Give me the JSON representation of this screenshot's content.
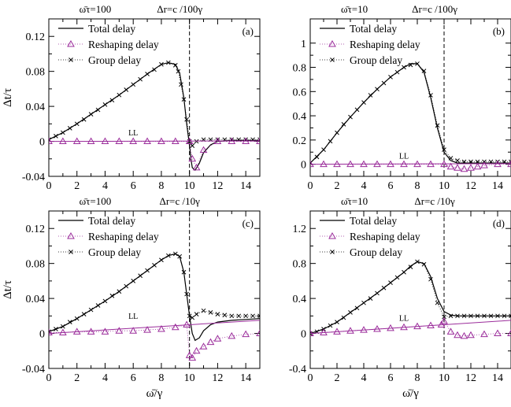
{
  "colors": {
    "total": "#000000",
    "reshaping": "#9b2d9b",
    "group": "#000000",
    "ll": "#9b2d9b",
    "axis": "#000000"
  },
  "chart_data": [
    {
      "id": "a",
      "type": "line",
      "panel_label": "(a)",
      "header_left": "ω̄τ=100",
      "header_right": "Δr=c /100γ",
      "ylabel": "Δt/τ",
      "xlabel": "",
      "xlim": [
        0,
        15
      ],
      "ylim": [
        -0.04,
        0.14
      ],
      "xticks": [
        0,
        2,
        4,
        6,
        8,
        10,
        12,
        14
      ],
      "xtick_labels": [
        "0",
        "2",
        "4",
        "6",
        "8",
        "10",
        "12",
        "14"
      ],
      "yticks": [
        -0.04,
        0,
        0.04,
        0.08,
        0.12
      ],
      "ytick_labels": [
        "-0.04",
        "0",
        "0.04",
        "0.08",
        "0.12"
      ],
      "vline": 10,
      "ll_label": "LL",
      "ll_at": [
        6,
        0.003
      ],
      "legend": [
        "Total delay",
        "Reshaping delay",
        "Group delay"
      ],
      "series": [
        {
          "name": "Total delay",
          "style": "solid",
          "x": [
            0,
            1,
            2,
            3,
            4,
            5,
            6,
            7,
            8,
            8.5,
            9,
            9.3,
            9.6,
            9.8,
            10,
            10.1,
            10.2,
            10.4,
            10.7,
            11,
            11.5,
            12,
            13,
            14,
            15
          ],
          "y": [
            0.002,
            0.01,
            0.02,
            0.031,
            0.042,
            0.053,
            0.065,
            0.077,
            0.088,
            0.09,
            0.088,
            0.078,
            0.05,
            0.02,
            -0.005,
            -0.02,
            -0.03,
            -0.033,
            -0.025,
            -0.013,
            -0.004,
            0,
            0.001,
            0.001,
            0.001
          ]
        },
        {
          "name": "Group delay",
          "style": "x",
          "x": [
            0,
            0.5,
            1,
            1.5,
            2,
            2.5,
            3,
            3.5,
            4,
            4.5,
            5,
            5.5,
            6,
            6.5,
            7,
            7.5,
            8,
            8.5,
            9,
            9.2,
            9.4,
            9.6,
            9.8,
            10,
            10.2,
            10.5,
            11,
            11.5,
            12,
            12.5,
            13,
            13.5,
            14,
            14.5,
            15
          ],
          "y": [
            0.002,
            0.006,
            0.01,
            0.015,
            0.02,
            0.025,
            0.031,
            0.036,
            0.042,
            0.047,
            0.053,
            0.059,
            0.065,
            0.071,
            0.077,
            0.082,
            0.088,
            0.09,
            0.087,
            0.08,
            0.065,
            0.048,
            0.025,
            0.0,
            -0.005,
            0.0,
            0.002,
            0.002,
            0.002,
            0.002,
            0.002,
            0.002,
            0.002,
            0.002,
            0.002
          ]
        },
        {
          "name": "Reshaping delay",
          "style": "triangle",
          "x": [
            0,
            1,
            2,
            3,
            4,
            5,
            6,
            7,
            8,
            9,
            10,
            10.2,
            10.5,
            11,
            12,
            13,
            14,
            15
          ],
          "y": [
            0,
            0,
            0,
            0,
            0,
            0,
            0,
            0,
            0,
            0,
            0,
            -0.02,
            -0.03,
            -0.01,
            0,
            0,
            0,
            0
          ]
        },
        {
          "name": "LL",
          "style": "ll",
          "x": [
            0,
            15
          ],
          "y": [
            0.0,
            0.0005
          ]
        }
      ]
    },
    {
      "id": "b",
      "type": "line",
      "panel_label": "(b)",
      "header_left": "ω̄τ=10",
      "header_right": "Δr=c /100γ",
      "ylabel": "",
      "xlabel": "",
      "xlim": [
        0,
        15
      ],
      "ylim": [
        -0.1,
        1.2
      ],
      "xticks": [
        0,
        2,
        4,
        6,
        8,
        10,
        12,
        14
      ],
      "xtick_labels": [
        "0",
        "2",
        "4",
        "6",
        "8",
        "10",
        "12",
        "14"
      ],
      "yticks": [
        0,
        0.2,
        0.4,
        0.6,
        0.8,
        1
      ],
      "ytick_labels": [
        "0",
        "0.2",
        "0.4",
        "0.6",
        "0.8",
        "1"
      ],
      "vline": 10,
      "ll_label": "LL",
      "ll_at": [
        7,
        0.02
      ],
      "legend": [
        "Total delay",
        "Reshaping delay",
        "Group delay"
      ],
      "series": [
        {
          "name": "Total delay",
          "style": "solid",
          "x": [
            0,
            1,
            2,
            3,
            4,
            5,
            6,
            7,
            7.5,
            8,
            8.5,
            9,
            9.5,
            10,
            10.5,
            11,
            11.5,
            12,
            13,
            14,
            15
          ],
          "y": [
            0.01,
            0.12,
            0.26,
            0.39,
            0.51,
            0.62,
            0.72,
            0.8,
            0.83,
            0.83,
            0.76,
            0.55,
            0.3,
            0.1,
            0.03,
            0.01,
            0.01,
            0.01,
            0.01,
            0.01,
            0.01
          ]
        },
        {
          "name": "Group delay",
          "style": "x",
          "x": [
            0,
            0.5,
            1,
            1.5,
            2,
            2.5,
            3,
            3.5,
            4,
            4.5,
            5,
            5.5,
            6,
            6.5,
            7,
            7.5,
            8,
            8.5,
            9,
            9.5,
            10,
            10.5,
            11,
            11.5,
            12,
            12.5,
            13,
            13.5,
            14,
            14.5,
            15
          ],
          "y": [
            0.01,
            0.06,
            0.12,
            0.19,
            0.26,
            0.33,
            0.39,
            0.45,
            0.51,
            0.57,
            0.62,
            0.67,
            0.72,
            0.76,
            0.8,
            0.82,
            0.83,
            0.77,
            0.57,
            0.32,
            0.12,
            0.05,
            0.03,
            0.02,
            0.02,
            0.02,
            0.02,
            0.02,
            0.02,
            0.02,
            0.02
          ]
        },
        {
          "name": "Reshaping delay",
          "style": "triangle",
          "x": [
            0,
            1,
            2,
            3,
            4,
            5,
            6,
            7,
            8,
            9,
            10,
            10.5,
            11,
            11.5,
            12,
            12.5,
            13,
            14,
            15
          ],
          "y": [
            0,
            0,
            0,
            0,
            0,
            0,
            0,
            0,
            0,
            0,
            0,
            -0.02,
            -0.03,
            -0.04,
            -0.03,
            -0.02,
            -0.01,
            0,
            0
          ]
        },
        {
          "name": "LL",
          "style": "ll",
          "x": [
            0,
            15
          ],
          "y": [
            0.0,
            0.005
          ]
        }
      ]
    },
    {
      "id": "c",
      "type": "line",
      "panel_label": "(c)",
      "header_left": "ω̄τ=100",
      "header_right": "Δr=c /10γ",
      "ylabel": "Δt/τ",
      "xlabel": "ω̄/γ",
      "xlim": [
        0,
        15
      ],
      "ylim": [
        -0.04,
        0.14
      ],
      "xticks": [
        0,
        2,
        4,
        6,
        8,
        10,
        12,
        14
      ],
      "xtick_labels": [
        "0",
        "2",
        "4",
        "6",
        "8",
        "10",
        "12",
        "14"
      ],
      "yticks": [
        -0.04,
        0,
        0.04,
        0.08,
        0.12
      ],
      "ytick_labels": [
        "-0.04",
        "0",
        "0.04",
        "0.08",
        "0.12"
      ],
      "vline": 10,
      "ll_label": "LL",
      "ll_at": [
        6,
        0.013
      ],
      "legend": [
        "Total delay",
        "Reshaping delay",
        "Group delay"
      ],
      "series": [
        {
          "name": "Total delay",
          "style": "solid",
          "x": [
            0,
            1,
            2,
            3,
            4,
            5,
            6,
            7,
            8,
            8.5,
            9,
            9.3,
            9.6,
            9.8,
            10,
            10.2,
            10.4,
            10.7,
            11,
            11.5,
            12,
            13,
            14,
            15
          ],
          "y": [
            0.002,
            0.008,
            0.017,
            0.027,
            0.037,
            0.048,
            0.06,
            0.072,
            0.084,
            0.089,
            0.091,
            0.088,
            0.07,
            0.045,
            0.02,
            0.0,
            -0.008,
            -0.005,
            0.003,
            0.01,
            0.013,
            0.015,
            0.016,
            0.017
          ]
        },
        {
          "name": "Group delay",
          "style": "x",
          "x": [
            0,
            0.5,
            1,
            1.5,
            2,
            2.5,
            3,
            3.5,
            4,
            4.5,
            5,
            5.5,
            6,
            6.5,
            7,
            7.5,
            8,
            8.5,
            9,
            9.3,
            9.6,
            9.8,
            10,
            10.2,
            10.5,
            11,
            11.5,
            12,
            12.5,
            13,
            13.5,
            14,
            14.5,
            15
          ],
          "y": [
            0.002,
            0.005,
            0.008,
            0.013,
            0.017,
            0.022,
            0.027,
            0.032,
            0.037,
            0.043,
            0.048,
            0.054,
            0.06,
            0.066,
            0.072,
            0.078,
            0.084,
            0.089,
            0.091,
            0.088,
            0.07,
            0.045,
            0.02,
            0.018,
            0.022,
            0.026,
            0.024,
            0.022,
            0.021,
            0.02,
            0.02,
            0.02,
            0.02,
            0.02
          ]
        },
        {
          "name": "Reshaping delay",
          "style": "triangle",
          "x": [
            0,
            1,
            2,
            3,
            4,
            5,
            6,
            7,
            8,
            9,
            9.8,
            10,
            10.2,
            10.5,
            11,
            11.5,
            12,
            13,
            14,
            15
          ],
          "y": [
            0.001,
            0.001,
            0.002,
            0.002,
            0.002,
            0.003,
            0.003,
            0.004,
            0.005,
            0.007,
            0.01,
            -0.025,
            -0.028,
            -0.02,
            -0.015,
            -0.01,
            -0.006,
            -0.003,
            -0.001,
            0
          ]
        },
        {
          "name": "LL",
          "style": "ll",
          "x": [
            0,
            15
          ],
          "y": [
            0.0,
            0.015
          ]
        }
      ]
    },
    {
      "id": "d",
      "type": "line",
      "panel_label": "(d)",
      "header_left": "ω̄τ=10",
      "header_right": "Δr=c /10γ",
      "ylabel": "",
      "xlabel": "ω̄/γ",
      "xlim": [
        0,
        15
      ],
      "ylim": [
        -0.4,
        1.4
      ],
      "xticks": [
        0,
        2,
        4,
        6,
        8,
        10,
        12,
        14
      ],
      "xtick_labels": [
        "0",
        "2",
        "4",
        "6",
        "8",
        "10",
        "12",
        "14"
      ],
      "yticks": [
        -0.4,
        0,
        0.4,
        0.8,
        1.2
      ],
      "ytick_labels": [
        "-0.4",
        "0",
        "0.4",
        "0.8",
        "1.2"
      ],
      "vline": 10,
      "ll_label": "LL",
      "ll_at": [
        7,
        0.11
      ],
      "legend": [
        "Total delay",
        "Reshaping delay",
        "Group delay"
      ],
      "series": [
        {
          "name": "Total delay",
          "style": "solid",
          "x": [
            0,
            1,
            2,
            3,
            4,
            5,
            6,
            7,
            7.5,
            8,
            8.5,
            9,
            9.5,
            10,
            10.5,
            11,
            12,
            13,
            14,
            15
          ],
          "y": [
            0.0,
            0.05,
            0.13,
            0.24,
            0.35,
            0.46,
            0.58,
            0.7,
            0.77,
            0.82,
            0.8,
            0.65,
            0.4,
            0.25,
            0.21,
            0.2,
            0.2,
            0.2,
            0.2,
            0.2
          ]
        },
        {
          "name": "Group delay",
          "style": "x",
          "x": [
            0,
            0.5,
            1,
            1.5,
            2,
            2.5,
            3,
            3.5,
            4,
            4.5,
            5,
            5.5,
            6,
            6.5,
            7,
            7.5,
            8,
            8.5,
            9,
            9.5,
            10,
            10.5,
            11,
            11.5,
            12,
            12.5,
            13,
            13.5,
            14,
            14.5,
            15
          ],
          "y": [
            0.0,
            0.02,
            0.05,
            0.09,
            0.13,
            0.18,
            0.24,
            0.29,
            0.35,
            0.4,
            0.46,
            0.52,
            0.58,
            0.64,
            0.7,
            0.76,
            0.82,
            0.79,
            0.62,
            0.35,
            0.19,
            0.2,
            0.2,
            0.2,
            0.2,
            0.2,
            0.2,
            0.2,
            0.2,
            0.2,
            0.2
          ]
        },
        {
          "name": "Reshaping delay",
          "style": "triangle",
          "x": [
            0,
            1,
            2,
            3,
            4,
            5,
            6,
            7,
            8,
            9,
            9.8,
            10,
            10.5,
            11,
            11.5,
            12,
            13,
            14,
            15
          ],
          "y": [
            0.0,
            0.01,
            0.02,
            0.03,
            0.04,
            0.05,
            0.06,
            0.07,
            0.08,
            0.09,
            0.1,
            0.14,
            0.02,
            -0.02,
            -0.03,
            -0.02,
            -0.01,
            0,
            0
          ]
        },
        {
          "name": "LL",
          "style": "ll",
          "x": [
            0,
            15
          ],
          "y": [
            0.0,
            0.15
          ]
        }
      ]
    }
  ]
}
